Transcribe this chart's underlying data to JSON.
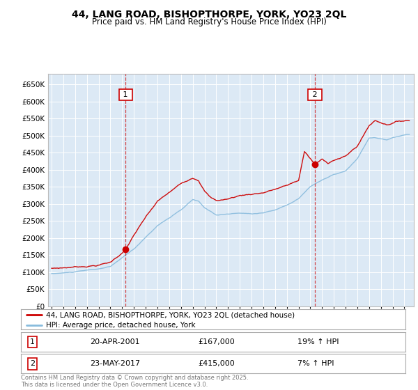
{
  "title": "44, LANG ROAD, BISHOPTHORPE, YORK, YO23 2QL",
  "subtitle": "Price paid vs. HM Land Registry's House Price Index (HPI)",
  "bg_color": "#dce9f5",
  "red_line_color": "#cc0000",
  "blue_line_color": "#88bbdd",
  "sale1_date": "20-APR-2001",
  "sale1_price": 167000,
  "sale1_hpi_pct": "19% ↑ HPI",
  "sale2_date": "23-MAY-2017",
  "sale2_price": 415000,
  "sale2_hpi_pct": "7% ↑ HPI",
  "sale1_year": 2001.3,
  "sale2_year": 2017.4,
  "yticks": [
    0,
    50000,
    100000,
    150000,
    200000,
    250000,
    300000,
    350000,
    400000,
    450000,
    500000,
    550000,
    600000,
    650000
  ],
  "ytick_labels": [
    "£0",
    "£50K",
    "£100K",
    "£150K",
    "£200K",
    "£250K",
    "£300K",
    "£350K",
    "£400K",
    "£450K",
    "£500K",
    "£550K",
    "£600K",
    "£650K"
  ],
  "xlim_start": 1994.7,
  "xlim_end": 2025.8,
  "ylim_bottom": 0,
  "ylim_top": 680000,
  "footer_text": "Contains HM Land Registry data © Crown copyright and database right 2025.\nThis data is licensed under the Open Government Licence v3.0.",
  "legend_red": "44, LANG ROAD, BISHOPTHORPE, YORK, YO23 2QL (detached house)",
  "legend_blue": "HPI: Average price, detached house, York",
  "key_red_years": [
    1995,
    1996,
    1997,
    1998,
    1999,
    2000,
    2001.3,
    2002,
    2003,
    2004,
    2005,
    2006,
    2007,
    2007.5,
    2008,
    2008.5,
    2009,
    2010,
    2011,
    2012,
    2013,
    2014,
    2015,
    2016,
    2016.5,
    2017.4,
    2018,
    2018.5,
    2019,
    2020,
    2021,
    2022,
    2022.5,
    2023,
    2023.5,
    2024,
    2024.5,
    2025.3
  ],
  "key_red_vals": [
    110000,
    112000,
    115000,
    118000,
    122000,
    130000,
    167000,
    210000,
    260000,
    305000,
    330000,
    355000,
    375000,
    370000,
    340000,
    320000,
    310000,
    315000,
    325000,
    330000,
    335000,
    345000,
    355000,
    370000,
    455000,
    415000,
    430000,
    420000,
    430000,
    440000,
    470000,
    530000,
    545000,
    540000,
    535000,
    540000,
    545000,
    548000
  ],
  "key_hpi_years": [
    1995,
    1996,
    1997,
    1998,
    1999,
    2000,
    2001,
    2002,
    2003,
    2004,
    2005,
    2006,
    2007,
    2007.5,
    2008,
    2009,
    2010,
    2011,
    2012,
    2013,
    2014,
    2015,
    2016,
    2017,
    2018,
    2019,
    2020,
    2021,
    2022,
    2022.5,
    2023,
    2023.5,
    2024,
    2024.5,
    2025.3
  ],
  "key_hpi_vals": [
    95000,
    97000,
    100000,
    104000,
    108000,
    114000,
    140000,
    165000,
    200000,
    235000,
    258000,
    280000,
    310000,
    305000,
    285000,
    265000,
    268000,
    270000,
    268000,
    272000,
    280000,
    295000,
    315000,
    350000,
    370000,
    385000,
    395000,
    430000,
    490000,
    492000,
    488000,
    484000,
    490000,
    495000,
    500000
  ]
}
